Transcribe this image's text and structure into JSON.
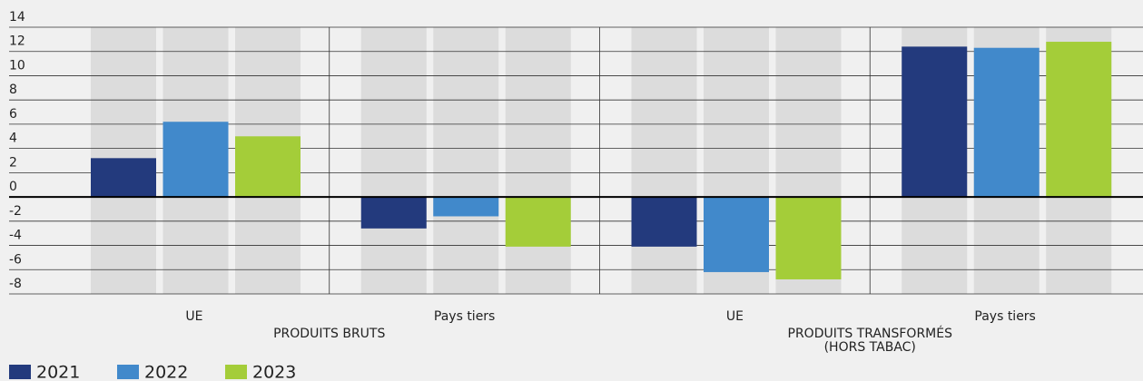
{
  "chart_data": {
    "type": "bar",
    "categories": [
      "UE",
      "Pays tiers",
      "UE",
      "Pays tiers"
    ],
    "groups": [
      "PRODUITS BRUTS",
      "PRODUITS TRANSFORMÉS (HORS TABAC)"
    ],
    "series": [
      {
        "name": "2021",
        "color": "#233a7d",
        "values": [
          3.2,
          -2.6,
          -4.1,
          12.4
        ]
      },
      {
        "name": "2022",
        "color": "#4189cb",
        "values": [
          6.2,
          -1.6,
          -6.2,
          12.3
        ]
      },
      {
        "name": "2023",
        "color": "#a4cd39",
        "values": [
          5.0,
          -4.1,
          -6.8,
          12.8
        ]
      }
    ],
    "ylim": [
      -8,
      14
    ],
    "yticks": [
      14,
      12,
      10,
      8,
      6,
      4,
      2,
      0,
      -2,
      -4,
      -6,
      -8
    ],
    "grid": true
  }
}
